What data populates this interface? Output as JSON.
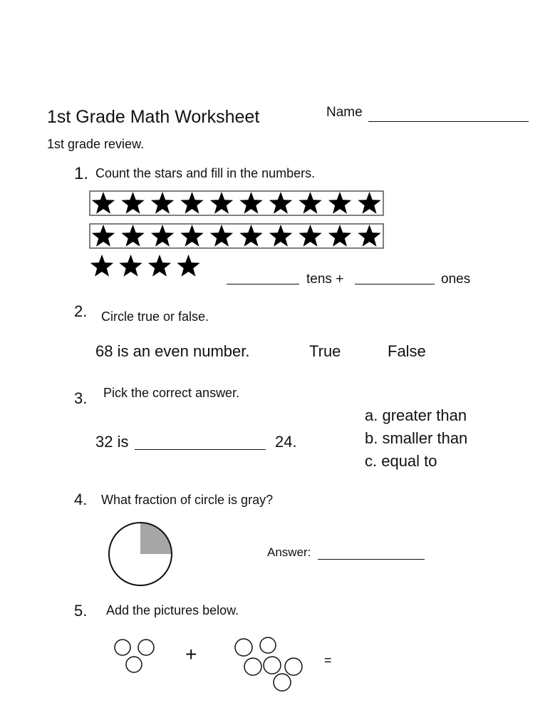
{
  "header": {
    "title": "1st Grade Math Worksheet",
    "name_label": "Name",
    "subtitle": "1st grade review."
  },
  "questions": [
    {
      "number": "1.",
      "text": "Count the stars and fill in the numbers.",
      "star_rows": [
        10,
        10,
        4
      ],
      "tens_label": "tens +",
      "ones_label": "ones"
    },
    {
      "number": "2.",
      "text": "Circle true or false.",
      "statement": "68 is an even number.",
      "options": [
        "True",
        "False"
      ]
    },
    {
      "number": "3.",
      "text": "Pick the correct answer.",
      "left": "32 is",
      "right": "24.",
      "choices": [
        "a. greater than",
        "b. smaller than",
        "c. equal to"
      ]
    },
    {
      "number": "4.",
      "text": "What fraction of  circle is gray?",
      "answer_label": "Answer:",
      "gray_fraction": 0.25,
      "gray_color": "#a6a6a6"
    },
    {
      "number": "5.",
      "text": "Add the pictures below.",
      "plus": "+",
      "equals": "=",
      "group_counts": [
        3,
        6
      ]
    }
  ]
}
